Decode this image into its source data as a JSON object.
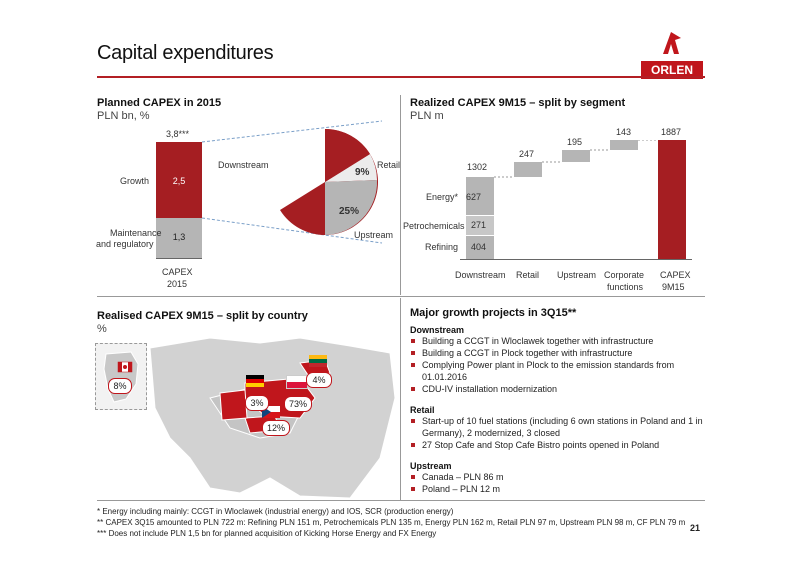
{
  "page": {
    "title": "Capital expenditures",
    "logo_text": "ORLEN",
    "page_number": "21"
  },
  "planned": {
    "title": "Planned CAPEX in 2015",
    "subtitle": "PLN bn, %",
    "total_label": "3,8***",
    "growth_label": "Growth",
    "growth_value": "2,5",
    "maint_label_1": "Maintenance",
    "maint_label_2": "and regulatory",
    "maint_value": "1,3",
    "bar_cat_1": "CAPEX",
    "bar_cat_2": "2015",
    "pie_downstream": "Downstream",
    "pie_downstream_pct": "66%",
    "pie_retail": "Retail",
    "pie_retail_pct": "9%",
    "pie_upstream": "Upstream",
    "pie_upstream_pct": "25%"
  },
  "realized": {
    "title": "Realized CAPEX 9M15 – split by segment",
    "subtitle": "PLN m",
    "energy_label": "Energy*",
    "petro_label": "Petrochemicals",
    "refining_label": "Refining",
    "energy_value": "627",
    "petro_value": "271",
    "refining_value": "404",
    "downstream_total": "1302",
    "retail_value": "247",
    "upstream_value": "195",
    "corporate_value": "143",
    "capex_total": "1887",
    "cat_downstream": "Downstream",
    "cat_retail": "Retail",
    "cat_upstream": "Upstream",
    "cat_corporate_1": "Corporate",
    "cat_corporate_2": "functions",
    "cat_capex_1": "CAPEX",
    "cat_capex_2": "9M15"
  },
  "country": {
    "title": "Realised CAPEX 9M15 – split by country",
    "subtitle": "%",
    "canada_pct": "8%",
    "lithuania_pct": "4%",
    "germany_pct": "3%",
    "poland_pct": "73%",
    "czech_pct": "12%"
  },
  "projects": {
    "title": "Major growth projects in 3Q15**",
    "downstream_head": "Downstream",
    "downstream_items": [
      "Building a CCGT in Wloclawek together with infrastructure",
      "Building a CCGT in Plock together with infrastructure",
      "Complying Power plant in Plock to the emission standards from 01.01.2016",
      "CDU-IV installation modernization"
    ],
    "retail_head": "Retail",
    "retail_items": [
      "Start-up of 10 fuel stations (including 6 own stations in Poland and 1 in Germany), 2 modernized, 3 closed",
      "27 Stop Cafe and Stop Cafe Bistro points opened in Poland"
    ],
    "upstream_head": "Upstream",
    "upstream_items": [
      "Canada – PLN 86 m",
      "Poland – PLN 12 m"
    ]
  },
  "footnotes": {
    "f1": "*   Energy including mainly: CCGT in Wloclawek (industrial energy) and IOS, SCR (production energy)",
    "f2": "** CAPEX 3Q15 amounted to PLN 722 m: Refining PLN 151 m, Petrochemicals PLN 135 m, Energy PLN 162 m, Retail PLN 97 m, Upstream PLN 98 m, CF PLN 79 m",
    "f3": "*** Does not include PLN 1,5 bn for planned acquisition of Kicking Horse Energy and FX Energy"
  },
  "colors": {
    "brand_red": "#c0161c",
    "dark_red": "#a51e22",
    "grey": "#b5b5b5",
    "light_grey": "#e0e0e0"
  }
}
